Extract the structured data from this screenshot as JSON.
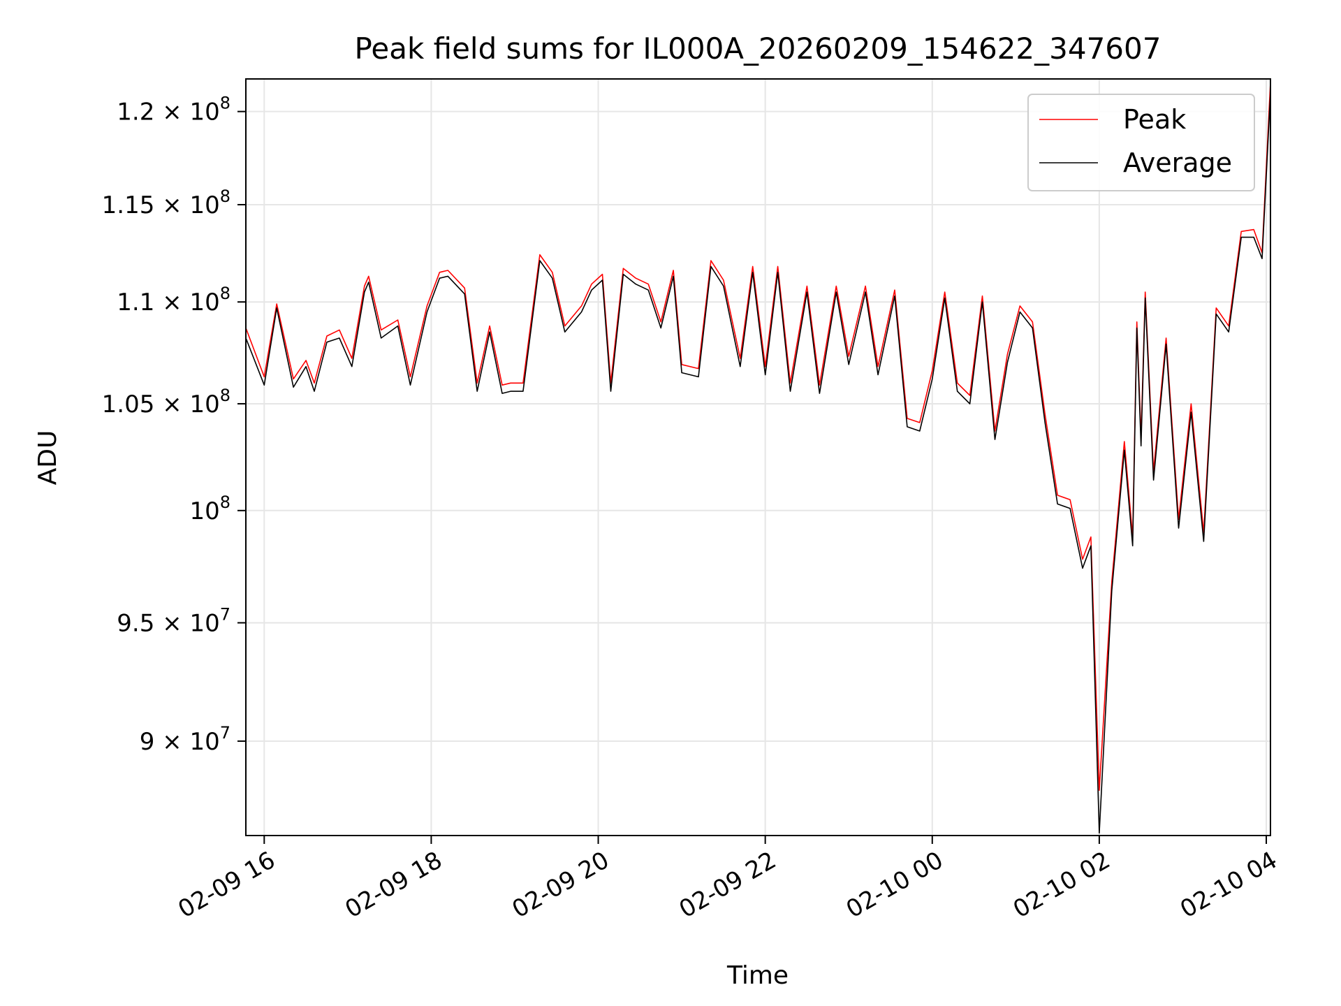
{
  "chart_data": {
    "type": "line",
    "title": "Peak field sums for IL000A_20260209_154622_347607",
    "xlabel": "Time",
    "ylabel": "ADU",
    "y_scale": "log",
    "grid": true,
    "legend_position": "top-right",
    "xlim": [
      15.78,
      28.05
    ],
    "ylim": [
      86200000,
      121800000
    ],
    "x_ticks": [
      {
        "value": 16,
        "label": "02-09 16"
      },
      {
        "value": 18,
        "label": "02-09 18"
      },
      {
        "value": 20,
        "label": "02-09 20"
      },
      {
        "value": 22,
        "label": "02-09 22"
      },
      {
        "value": 24,
        "label": "02-10 00"
      },
      {
        "value": 26,
        "label": "02-10 02"
      },
      {
        "value": 28,
        "label": "02-10 04"
      }
    ],
    "y_ticks": [
      {
        "value": 90000000,
        "mantissa": "9 × 10",
        "exp": "7"
      },
      {
        "value": 95000000,
        "mantissa": "9.5 × 10",
        "exp": "7"
      },
      {
        "value": 100000000,
        "mantissa": "10",
        "exp": "8"
      },
      {
        "value": 105000000,
        "mantissa": "1.05 × 10",
        "exp": "8"
      },
      {
        "value": 110000000,
        "mantissa": "1.1 × 10",
        "exp": "8"
      },
      {
        "value": 115000000,
        "mantissa": "1.15 × 10",
        "exp": "8"
      },
      {
        "value": 120000000,
        "mantissa": "1.2 × 10",
        "exp": "8"
      }
    ],
    "x_hours_from_2026_02_09_00": [
      15.78,
      16.0,
      16.15,
      16.35,
      16.5,
      16.6,
      16.75,
      16.9,
      17.05,
      17.2,
      17.25,
      17.4,
      17.6,
      17.75,
      17.95,
      18.1,
      18.2,
      18.4,
      18.55,
      18.7,
      18.85,
      18.95,
      19.1,
      19.3,
      19.45,
      19.6,
      19.8,
      19.92,
      20.05,
      20.15,
      20.3,
      20.45,
      20.6,
      20.75,
      20.9,
      21.0,
      21.2,
      21.35,
      21.5,
      21.7,
      21.85,
      22.0,
      22.15,
      22.3,
      22.5,
      22.65,
      22.85,
      23.0,
      23.2,
      23.35,
      23.55,
      23.7,
      23.85,
      24.0,
      24.15,
      24.3,
      24.45,
      24.6,
      24.75,
      24.9,
      25.05,
      25.2,
      25.35,
      25.5,
      25.65,
      25.8,
      25.9,
      26.0,
      26.15,
      26.3,
      26.4,
      26.45,
      26.5,
      26.55,
      26.65,
      26.8,
      26.95,
      27.1,
      27.25,
      27.4,
      27.55,
      27.7,
      27.85,
      27.95,
      28.05
    ],
    "series": [
      {
        "name": "Peak",
        "color": "#ff0000",
        "values": [
          108700000,
          106300000,
          109900000,
          106200000,
          107100000,
          106000000,
          108300000,
          108600000,
          107200000,
          110800000,
          111300000,
          108600000,
          109100000,
          106300000,
          109800000,
          111500000,
          111600000,
          110700000,
          106000000,
          108800000,
          105900000,
          106000000,
          106000000,
          112400000,
          111500000,
          108800000,
          109800000,
          110900000,
          111400000,
          106000000,
          111700000,
          111200000,
          110900000,
          109000000,
          111600000,
          106900000,
          106700000,
          112100000,
          111100000,
          107200000,
          111800000,
          106800000,
          111800000,
          106000000,
          110800000,
          105900000,
          110800000,
          107300000,
          110800000,
          106800000,
          110600000,
          104300000,
          104100000,
          106600000,
          110500000,
          106000000,
          105400000,
          110300000,
          103700000,
          107400000,
          109800000,
          109000000,
          104500000,
          100700000,
          100500000,
          97800000,
          98800000,
          88000000,
          96800000,
          103200000,
          98800000,
          109000000,
          103400000,
          110500000,
          101800000,
          108200000,
          99600000,
          105000000,
          99000000,
          109700000,
          108800000,
          113600000,
          113700000,
          112500000,
          121600000
        ]
      },
      {
        "name": "Average",
        "color": "#000000",
        "values": [
          108200000,
          105900000,
          109700000,
          105800000,
          106800000,
          105600000,
          108000000,
          108200000,
          106800000,
          110500000,
          111000000,
          108200000,
          108800000,
          105900000,
          109500000,
          111200000,
          111300000,
          110400000,
          105600000,
          108500000,
          105500000,
          105600000,
          105600000,
          112100000,
          111200000,
          108500000,
          109500000,
          110600000,
          111100000,
          105600000,
          111400000,
          110900000,
          110600000,
          108700000,
          111300000,
          106500000,
          106300000,
          111800000,
          110800000,
          106800000,
          111500000,
          106400000,
          111500000,
          105600000,
          110500000,
          105500000,
          110500000,
          106900000,
          110500000,
          106400000,
          110300000,
          103900000,
          103700000,
          106200000,
          110200000,
          105600000,
          105000000,
          110000000,
          103300000,
          107000000,
          109500000,
          108700000,
          104100000,
          100300000,
          100100000,
          97400000,
          98400000,
          86300000,
          96400000,
          102800000,
          98400000,
          108700000,
          103000000,
          110200000,
          101400000,
          107900000,
          99200000,
          104600000,
          98600000,
          109400000,
          108500000,
          113300000,
          113300000,
          112200000,
          121000000
        ]
      }
    ]
  }
}
